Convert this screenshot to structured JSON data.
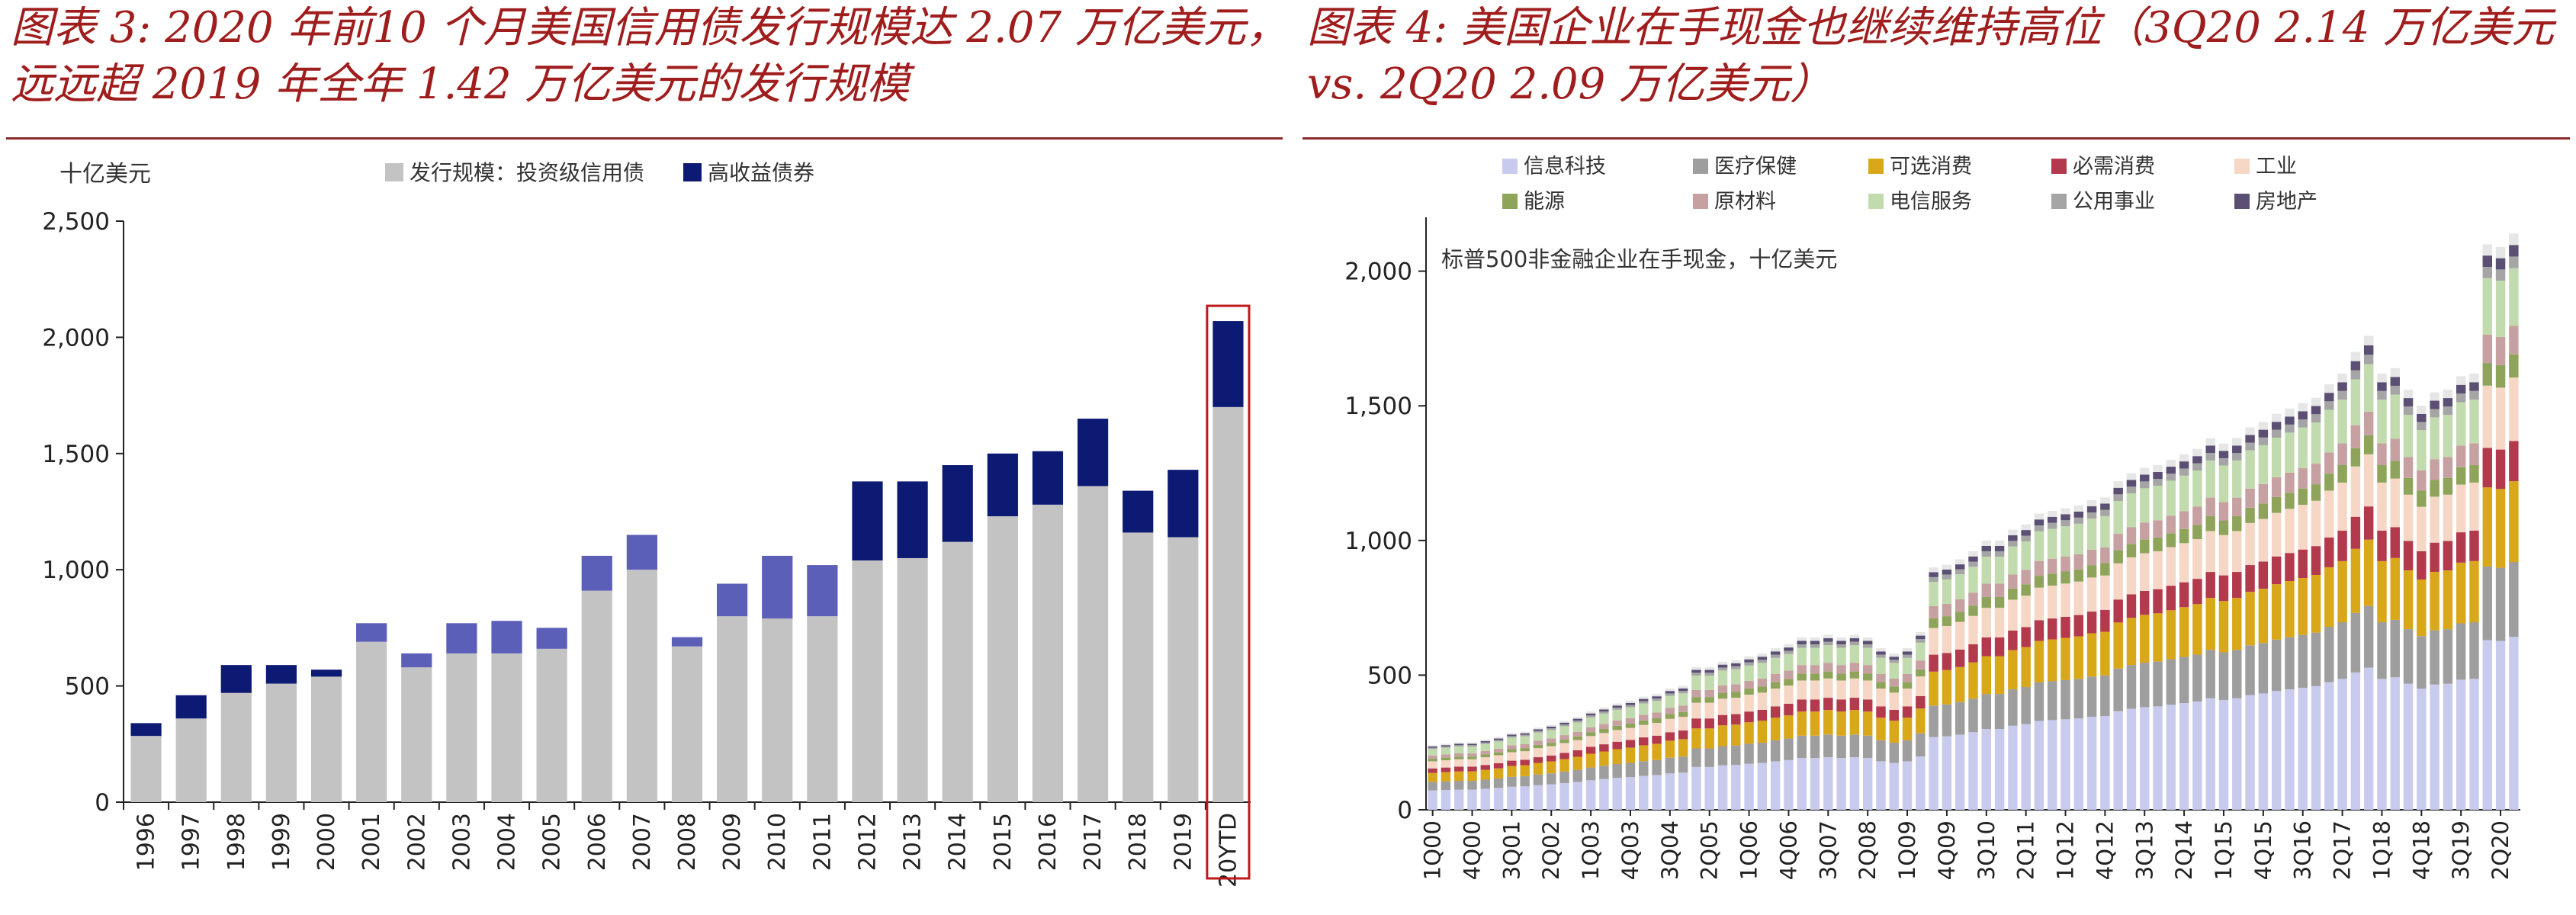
{
  "figures": {
    "left_title": "图表 3: 2020 年前10 个月美国信用债发行规模达 2.07 万亿美元，远远超 2019 年全年 1.42 万亿美元的发行规模",
    "right_title": "图表 4:  美国企业在手现金也继续维持高位（3Q20 2.14 万亿美元  vs. 2Q20 2.09 万亿美元）"
  },
  "chart_data": [
    {
      "type": "bar",
      "stacked": true,
      "unit_label": "十亿美元",
      "xlabel": "",
      "ylabel": "",
      "categories": [
        "1996",
        "1997",
        "1998",
        "1999",
        "2000",
        "2001",
        "2002",
        "2003",
        "2004",
        "2005",
        "2006",
        "2007",
        "2008",
        "2009",
        "2010",
        "2011",
        "2012",
        "2013",
        "2014",
        "2015",
        "2016",
        "2017",
        "2018",
        "2019",
        "20YTD"
      ],
      "series": [
        {
          "name": "发行规模：投资级信用债",
          "color": "#c3c3c3",
          "values": [
            285,
            360,
            470,
            510,
            540,
            690,
            580,
            640,
            640,
            660,
            910,
            1000,
            670,
            800,
            790,
            800,
            1040,
            1050,
            1120,
            1230,
            1280,
            1360,
            1160,
            1140,
            1700
          ]
        },
        {
          "name": "高收益债券",
          "color": "#0d1a73",
          "values": [
            55,
            100,
            120,
            80,
            30,
            80,
            60,
            130,
            140,
            90,
            150,
            150,
            40,
            140,
            270,
            220,
            340,
            330,
            330,
            270,
            230,
            290,
            180,
            290,
            370
          ]
        }
      ],
      "highlighted_categories": [
        "2001",
        "2002",
        "2003",
        "2004",
        "2005",
        "2006",
        "2007",
        "2008",
        "2009",
        "2010",
        "2011"
      ],
      "highlight_color": "#5b5fb8",
      "emphasized_category": "20YTD",
      "emphasis_color": "#c0181b",
      "ylim": [
        0,
        2500
      ],
      "yticks": [
        "0",
        "500",
        "1,000",
        "1,500",
        "2,000",
        "2,500"
      ],
      "ytick_values": [
        0,
        500,
        1000,
        1500,
        2000,
        2500
      ],
      "legend_position": "top",
      "grid": false
    },
    {
      "type": "bar",
      "stacked": true,
      "annotation": "标普500非金融企业在手现金，十亿美元",
      "categories": [
        "1Q00",
        "2Q00",
        "3Q00",
        "4Q00",
        "1Q01",
        "2Q01",
        "3Q01",
        "4Q01",
        "1Q02",
        "2Q02",
        "3Q02",
        "4Q02",
        "1Q03",
        "2Q03",
        "3Q03",
        "4Q03",
        "1Q04",
        "2Q04",
        "3Q04",
        "4Q04",
        "1Q05",
        "2Q05",
        "3Q05",
        "4Q05",
        "1Q06",
        "2Q06",
        "3Q06",
        "4Q06",
        "1Q07",
        "2Q07",
        "3Q07",
        "4Q07",
        "1Q08",
        "2Q08",
        "3Q08",
        "4Q08",
        "1Q09",
        "2Q09",
        "3Q09",
        "4Q09",
        "1Q10",
        "2Q10",
        "3Q10",
        "4Q10",
        "1Q11",
        "2Q11",
        "3Q11",
        "4Q11",
        "1Q12",
        "2Q12",
        "3Q12",
        "4Q12",
        "1Q13",
        "2Q13",
        "3Q13",
        "4Q13",
        "1Q14",
        "2Q14",
        "3Q14",
        "4Q14",
        "1Q15",
        "2Q15",
        "3Q15",
        "4Q15",
        "1Q16",
        "2Q16",
        "3Q16",
        "4Q16",
        "1Q17",
        "2Q17",
        "3Q17",
        "4Q17",
        "1Q18",
        "2Q18",
        "3Q18",
        "4Q18",
        "1Q19",
        "2Q19",
        "3Q19",
        "4Q19",
        "1Q20",
        "2Q20",
        "3Q20"
      ],
      "tick_labels": [
        "1Q00",
        "4Q00",
        "3Q01",
        "2Q02",
        "1Q03",
        "4Q03",
        "3Q04",
        "2Q05",
        "1Q06",
        "4Q06",
        "3Q07",
        "2Q08",
        "1Q09",
        "4Q09",
        "3Q10",
        "2Q11",
        "1Q12",
        "4Q12",
        "3Q13",
        "2Q14",
        "1Q15",
        "4Q15",
        "3Q16",
        "2Q17",
        "1Q18",
        "4Q18",
        "3Q19",
        "2Q20"
      ],
      "totals": [
        240,
        245,
        250,
        250,
        260,
        270,
        285,
        290,
        305,
        315,
        330,
        345,
        365,
        380,
        395,
        405,
        420,
        430,
        450,
        460,
        530,
        530,
        550,
        555,
        570,
        580,
        600,
        615,
        640,
        640,
        650,
        640,
        650,
        640,
        600,
        580,
        600,
        660,
        900,
        910,
        930,
        960,
        1000,
        1000,
        1040,
        1060,
        1100,
        1110,
        1120,
        1130,
        1150,
        1160,
        1220,
        1250,
        1270,
        1280,
        1300,
        1320,
        1340,
        1380,
        1360,
        1380,
        1420,
        1440,
        1470,
        1490,
        1510,
        1530,
        1580,
        1620,
        1700,
        1760,
        1620,
        1640,
        1560,
        1500,
        1550,
        1560,
        1610,
        1620,
        2100,
        2090,
        2140
      ],
      "shares": [
        0.3,
        0.13,
        0.14,
        0.07,
        0.11,
        0.04,
        0.05,
        0.1,
        0.02,
        0.02,
        0.02
      ],
      "series": [
        {
          "name": "信息科技",
          "color": "#c9cbee"
        },
        {
          "name": "医疗保健",
          "color": "#9e9e9e"
        },
        {
          "name": "可选消费",
          "color": "#d9a71a"
        },
        {
          "name": "必需消费",
          "color": "#b23a4c"
        },
        {
          "name": "工业",
          "color": "#f6d7c6"
        },
        {
          "name": "能源",
          "color": "#8fa45b"
        },
        {
          "name": "原材料",
          "color": "#c7a1a1"
        },
        {
          "name": "电信服务",
          "color": "#c2dbae"
        },
        {
          "name": "公用事业",
          "color": "#a5a5a5"
        },
        {
          "name": "房地产",
          "color": "#5b4f73"
        },
        {
          "name": "",
          "color": "#e6e6e6"
        }
      ],
      "ylim": [
        0,
        2200
      ],
      "yticks": [
        "0",
        "500",
        "1,000",
        "1,500",
        "2,000"
      ],
      "ytick_values": [
        0,
        500,
        1000,
        1500,
        2000
      ],
      "legend_position": "top",
      "grid": false
    }
  ]
}
